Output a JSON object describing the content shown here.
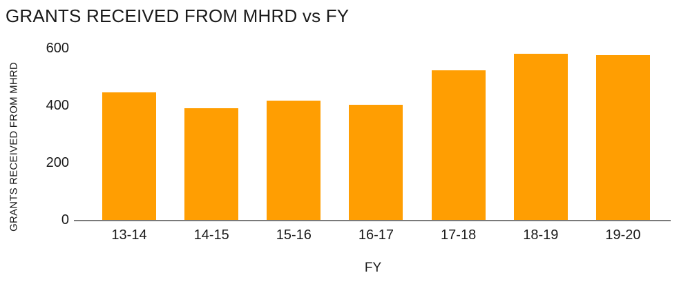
{
  "chart_data": {
    "type": "bar",
    "title": "GRANTS RECEIVED FROM MHRD vs FY",
    "xlabel": "FY",
    "ylabel": "GRANTS RECEIVED FROM MHRD",
    "categories": [
      "13-14",
      "14-15",
      "15-16",
      "16-17",
      "17-18",
      "18-19",
      "19-20"
    ],
    "values": [
      445,
      390,
      418,
      403,
      524,
      580,
      575
    ],
    "ylim": [
      0,
      600
    ],
    "yticks": [
      0,
      200,
      400,
      600
    ],
    "grid": false,
    "legend": "none",
    "colors": {
      "bar": "#FF9E02",
      "axis_line": "#7a7a7a",
      "text": "#1a1a1a",
      "background": "#ffffff"
    }
  }
}
